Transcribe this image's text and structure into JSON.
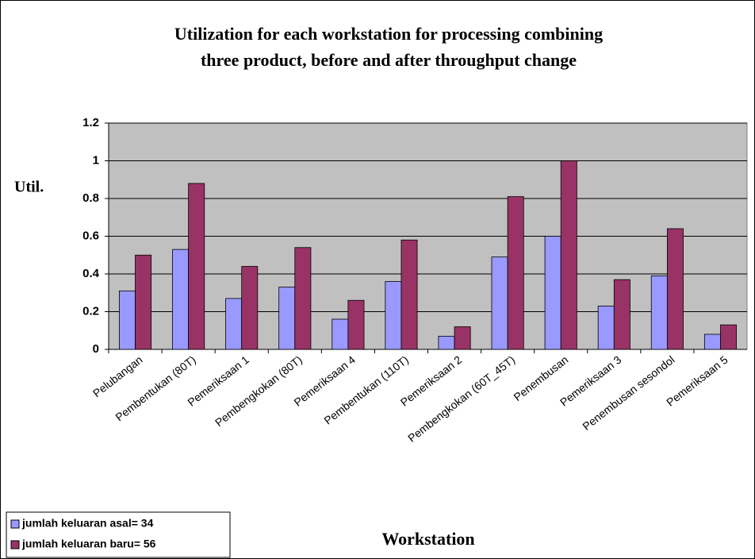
{
  "chart_data": {
    "type": "bar",
    "title": "Utilization for each workstation for processing combining",
    "subtitle": "three product, before and after throughput change",
    "y_label": "Util.",
    "x_label": "Workstation",
    "categories": [
      "Pelubangan",
      "Pembentukan (80T)",
      "Pemeriksaan 1",
      "Pembengkokan (80T)",
      "Pemeriksaan 4",
      "Pembentukan (110T)",
      "Pemeriksaan 2",
      "Pembengkokan (60T_45T)",
      "Penembusan",
      "Pemeriksaan 3",
      "Penembusan sesondol",
      "Pemeriksaan 5"
    ],
    "series": [
      {
        "name": "jumlah keluaran asal= 34",
        "color": "#9999ff",
        "values": [
          0.31,
          0.53,
          0.27,
          0.33,
          0.16,
          0.36,
          0.07,
          0.49,
          0.6,
          0.23,
          0.39,
          0.08
        ]
      },
      {
        "name": "jumlah keluaran baru= 56",
        "color": "#993366",
        "values": [
          0.5,
          0.88,
          0.44,
          0.54,
          0.26,
          0.58,
          0.12,
          0.81,
          1.0,
          0.37,
          0.64,
          0.13
        ]
      }
    ],
    "ylim": [
      0,
      1.2
    ],
    "yticks": [
      0,
      0.2,
      0.4,
      0.6,
      0.8,
      1,
      1.2
    ],
    "grid": true,
    "legend": "bottom-left",
    "plot_background": "#c0c0c0"
  }
}
